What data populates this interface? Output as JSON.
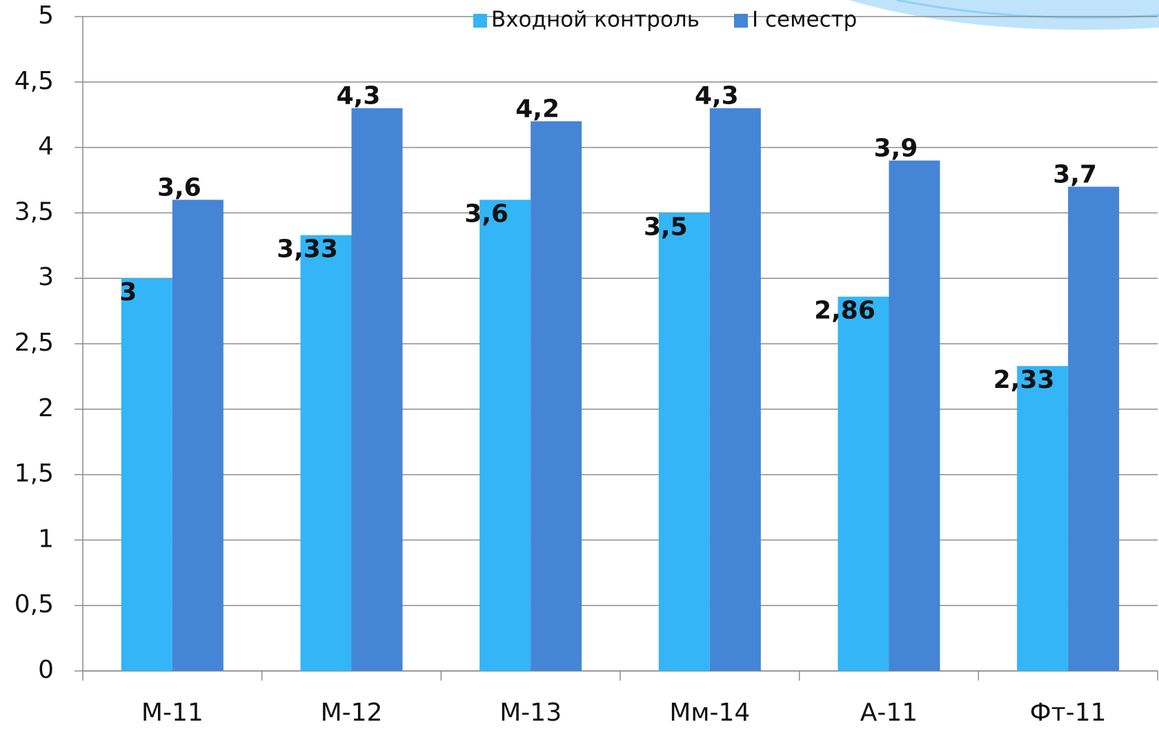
{
  "chart_data": {
    "type": "bar",
    "categories": [
      "М-11",
      "М-12",
      "М-13",
      "Мм-14",
      "А-11",
      "Фт-11"
    ],
    "series": [
      {
        "name": "Входной контроль",
        "color": "#33b5f7",
        "values": [
          3,
          3.33,
          3.6,
          3.5,
          2.86,
          2.33
        ],
        "value_labels": [
          "3",
          "3,33",
          "3,6",
          "3,5",
          "2,86",
          "2,33"
        ]
      },
      {
        "name": "I семестр",
        "color": "#4585d5",
        "values": [
          3.6,
          4.3,
          4.2,
          4.3,
          3.9,
          3.7
        ],
        "value_labels": [
          "3,6",
          "4,3",
          "4,2",
          "4,3",
          "3,9",
          "3,7"
        ]
      }
    ],
    "ylim": [
      0,
      5
    ],
    "yticks": [
      0,
      {
        "value": 0.5,
        "label": "0,5"
      },
      1,
      {
        "value": 1.5,
        "label": "1,5"
      },
      2,
      {
        "value": 2.5,
        "label": "2,5"
      },
      3,
      {
        "value": 3.5,
        "label": "3,5"
      },
      4,
      {
        "value": 4.5,
        "label": "4,5"
      },
      5
    ],
    "grid": true,
    "legend": "top"
  }
}
